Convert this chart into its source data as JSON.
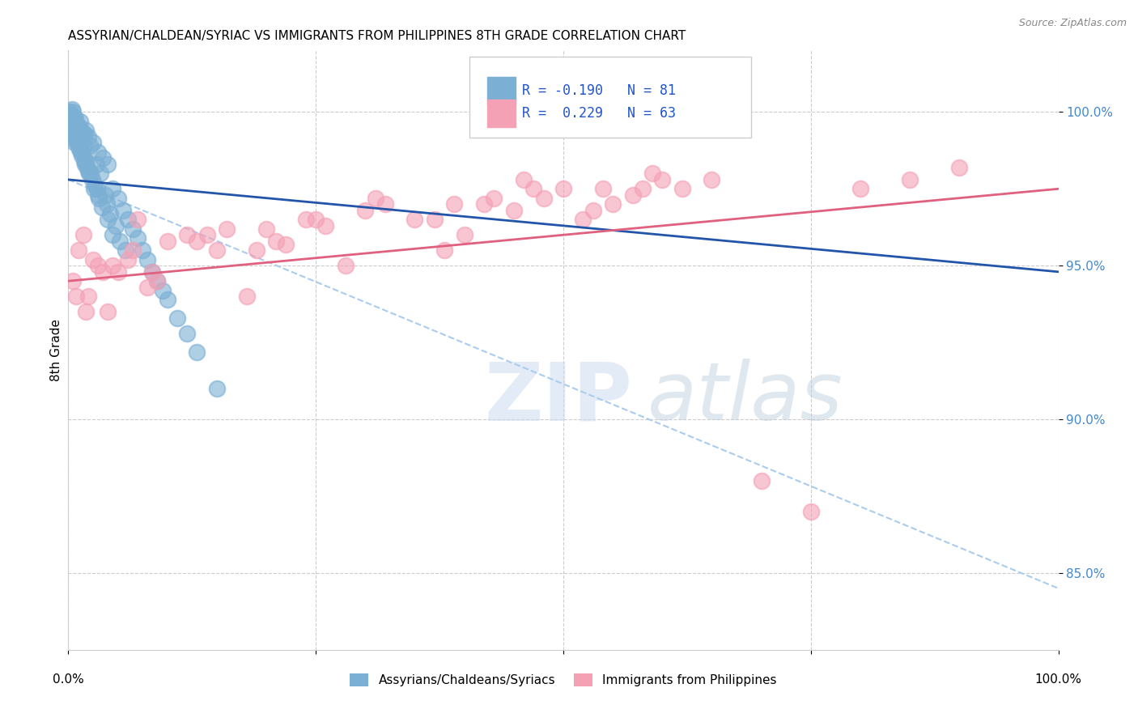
{
  "title": "ASSYRIAN/CHALDEAN/SYRIAC VS IMMIGRANTS FROM PHILIPPINES 8TH GRADE CORRELATION CHART",
  "source": "Source: ZipAtlas.com",
  "ylabel": "8th Grade",
  "xlim": [
    0.0,
    100.0
  ],
  "ylim": [
    82.5,
    102.0
  ],
  "yticks": [
    85.0,
    90.0,
    95.0,
    100.0
  ],
  "ytick_labels": [
    "85.0%",
    "90.0%",
    "95.0%",
    "100.0%"
  ],
  "blue_R": -0.19,
  "blue_N": 81,
  "pink_R": 0.229,
  "pink_N": 63,
  "blue_color": "#7bafd4",
  "pink_color": "#f4a0b5",
  "blue_line_color": "#2255aa",
  "pink_line_color": "#e06080",
  "dashed_line_color": "#aaccee",
  "legend_label_blue": "Assyrians/Chaldeans/Syriacs",
  "legend_label_pink": "Immigrants from Philippines",
  "blue_scatter_x": [
    0.5,
    0.7,
    1.0,
    1.2,
    1.5,
    0.3,
    0.8,
    1.8,
    2.0,
    2.5,
    0.4,
    0.6,
    1.1,
    1.3,
    0.9,
    2.2,
    0.2,
    1.6,
    3.0,
    3.5,
    4.0,
    0.1,
    0.5,
    0.7,
    1.0,
    1.5,
    2.8,
    3.2,
    4.5,
    5.0,
    0.3,
    0.6,
    1.2,
    1.8,
    2.3,
    3.7,
    5.5,
    6.0,
    0.4,
    0.8,
    1.4,
    2.0,
    2.7,
    3.9,
    6.5,
    7.0,
    0.2,
    0.9,
    1.6,
    2.4,
    3.1,
    4.2,
    7.5,
    8.0,
    0.5,
    1.1,
    1.9,
    2.6,
    3.4,
    4.8,
    8.5,
    9.0,
    0.3,
    0.7,
    1.3,
    2.1,
    3.0,
    4.0,
    5.2,
    9.5,
    10.0,
    11.0,
    12.0,
    0.4,
    0.6,
    1.7,
    2.9,
    4.5,
    13.0,
    5.8,
    15.0
  ],
  "blue_scatter_y": [
    100.0,
    99.8,
    99.5,
    99.7,
    99.3,
    99.9,
    99.6,
    99.4,
    99.2,
    99.0,
    100.1,
    99.8,
    99.5,
    99.2,
    99.6,
    98.9,
    99.9,
    99.3,
    98.7,
    98.5,
    98.3,
    100.0,
    99.8,
    99.5,
    99.2,
    98.9,
    98.3,
    98.0,
    97.5,
    97.2,
    99.7,
    99.3,
    98.8,
    98.4,
    98.0,
    97.3,
    96.8,
    96.5,
    99.6,
    99.1,
    98.6,
    98.1,
    97.6,
    97.0,
    96.2,
    95.9,
    99.8,
    99.0,
    98.4,
    97.8,
    97.2,
    96.7,
    95.5,
    95.2,
    99.5,
    98.8,
    98.2,
    97.5,
    96.9,
    96.3,
    94.8,
    94.5,
    99.7,
    99.2,
    98.7,
    98.0,
    97.3,
    96.5,
    95.8,
    94.2,
    93.9,
    93.3,
    92.8,
    99.4,
    99.0,
    98.3,
    97.5,
    96.0,
    92.2,
    95.5,
    91.0
  ],
  "pink_scatter_x": [
    0.5,
    1.0,
    1.5,
    2.0,
    3.0,
    4.0,
    5.0,
    6.0,
    7.0,
    8.0,
    10.0,
    12.0,
    15.0,
    18.0,
    20.0,
    22.0,
    25.0,
    28.0,
    30.0,
    35.0,
    38.0,
    40.0,
    42.0,
    45.0,
    48.0,
    50.0,
    52.0,
    55.0,
    58.0,
    60.0,
    2.5,
    3.5,
    6.5,
    9.0,
    13.0,
    16.0,
    21.0,
    26.0,
    32.0,
    37.0,
    43.0,
    47.0,
    53.0,
    57.0,
    62.0,
    0.8,
    1.8,
    4.5,
    8.5,
    14.0,
    19.0,
    24.0,
    31.0,
    39.0,
    46.0,
    54.0,
    59.0,
    65.0,
    70.0,
    75.0,
    80.0,
    85.0,
    90.0
  ],
  "pink_scatter_y": [
    94.5,
    95.5,
    96.0,
    94.0,
    95.0,
    93.5,
    94.8,
    95.2,
    96.5,
    94.3,
    95.8,
    96.0,
    95.5,
    94.0,
    96.2,
    95.7,
    96.5,
    95.0,
    96.8,
    96.5,
    95.5,
    96.0,
    97.0,
    96.8,
    97.2,
    97.5,
    96.5,
    97.0,
    97.5,
    97.8,
    95.2,
    94.8,
    95.5,
    94.5,
    95.8,
    96.2,
    95.8,
    96.3,
    97.0,
    96.5,
    97.2,
    97.5,
    96.8,
    97.3,
    97.5,
    94.0,
    93.5,
    95.0,
    94.8,
    96.0,
    95.5,
    96.5,
    97.2,
    97.0,
    97.8,
    97.5,
    98.0,
    97.8,
    88.0,
    87.0,
    97.5,
    97.8,
    98.2
  ],
  "blue_trendline_x": [
    0.0,
    100.0
  ],
  "blue_trendline_y": [
    97.8,
    94.8
  ],
  "pink_trendline_x": [
    0.0,
    100.0
  ],
  "pink_trendline_y": [
    94.5,
    97.5
  ],
  "dashed_trendline_x": [
    0.0,
    100.0
  ],
  "dashed_trendline_y": [
    97.8,
    84.5
  ]
}
